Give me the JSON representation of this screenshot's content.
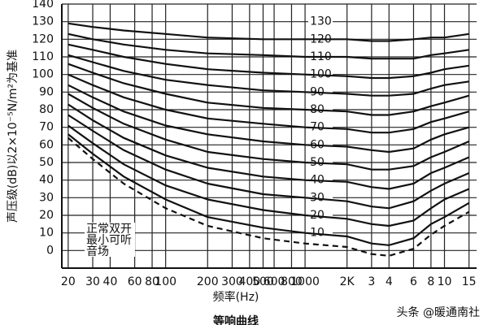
{
  "chart_data": {
    "type": "line",
    "title": "等响曲线",
    "xlabel": "频率(Hz)",
    "ylabel": "声压级(dB)以2×10⁻⁵N/m²为基准",
    "annotation": [
      "正常双开",
      "最小可听",
      "音场"
    ],
    "watermark": "头条 @暖通南社",
    "log_x": true,
    "grid": true,
    "x": [
      20,
      30,
      50,
      100,
      200,
      500,
      1000,
      2000,
      3000,
      4000,
      6000,
      8000,
      10000,
      15000
    ],
    "xlim": [
      18,
      17000
    ],
    "xticks": [
      20,
      30,
      40,
      60,
      80,
      100,
      200,
      300,
      400,
      500,
      600,
      800,
      1000,
      {
        "value": 2000,
        "label": "2K"
      },
      {
        "value": 3000,
        "label": "3"
      },
      {
        "value": 4000,
        "label": "4"
      },
      {
        "value": 6000,
        "label": "6"
      },
      {
        "value": 8000,
        "label": "8"
      },
      {
        "value": 10000,
        "label": "10"
      },
      {
        "value": 15000,
        "label": "15"
      }
    ],
    "ylim": [
      -10,
      140
    ],
    "yticks": [
      0,
      10,
      20,
      30,
      40,
      50,
      60,
      70,
      80,
      90,
      100,
      110,
      120,
      130,
      140
    ],
    "series": [
      {
        "color": "#111",
        "values": [
          66,
          55,
          42,
          29,
          19,
          13,
          10,
          8,
          4,
          3,
          7,
          15,
          19,
          27
        ]
      },
      {
        "color": "#111",
        "values": [
          71,
          61,
          49,
          37,
          29,
          23,
          20,
          18,
          15,
          14,
          17,
          24,
          29,
          35
        ]
      },
      {
        "color": "#111",
        "values": [
          77,
          68,
          57,
          46,
          38,
          32,
          30,
          28,
          25,
          24,
          28,
          34,
          38,
          44
        ]
      },
      {
        "color": "#111",
        "values": [
          83,
          74,
          64,
          54,
          47,
          42,
          40,
          39,
          36,
          35,
          38,
          44,
          47,
          53
        ]
      },
      {
        "color": "#111",
        "values": [
          89,
          81,
          72,
          63,
          56,
          52,
          50,
          49,
          46,
          46,
          48,
          53,
          56,
          62
        ]
      },
      {
        "color": "#111",
        "values": [
          94,
          87,
          79,
          71,
          66,
          62,
          60,
          59,
          57,
          56,
          58,
          63,
          66,
          70
        ]
      },
      {
        "color": "#111",
        "values": [
          100,
          94,
          87,
          80,
          75,
          72,
          70,
          69,
          67,
          67,
          69,
          73,
          75,
          79
        ]
      },
      {
        "color": "#111",
        "values": [
          106,
          101,
          95,
          89,
          84,
          81,
          80,
          79,
          77,
          77,
          79,
          82,
          84,
          88
        ]
      },
      {
        "color": "#111",
        "values": [
          111,
          107,
          102,
          97,
          94,
          91,
          90,
          89,
          88,
          88,
          89,
          92,
          94,
          96
        ]
      },
      {
        "color": "#111",
        "values": [
          117,
          114,
          110,
          106,
          103,
          101,
          100,
          99,
          98,
          98,
          99,
          101,
          103,
          105
        ]
      },
      {
        "color": "#111",
        "values": [
          123,
          120,
          117,
          114,
          112,
          111,
          110,
          110,
          109,
          109,
          109,
          111,
          112,
          114
        ]
      },
      {
        "color": "#111",
        "values": [
          129,
          127,
          125,
          123,
          121,
          120,
          120,
          120,
          119,
          119,
          120,
          121,
          121,
          123
        ]
      },
      {
        "color": "#111",
        "dashed": true,
        "values": [
          64,
          52,
          38,
          24,
          14,
          7,
          4,
          2,
          -2,
          -3,
          1,
          9,
          14,
          22
        ]
      }
    ]
  }
}
